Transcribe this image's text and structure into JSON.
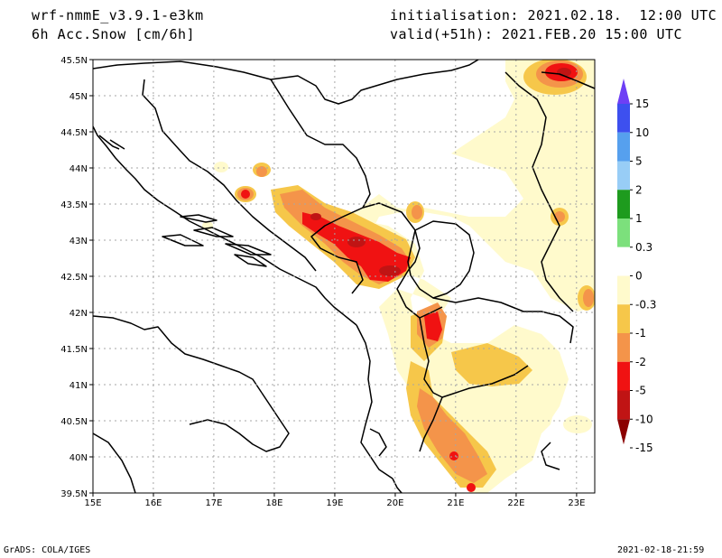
{
  "header": {
    "model": "wrf-nmmE_v3.9.1-e3km",
    "field": "6h Acc.Snow [cm/6h]",
    "init": "initialisation: 2021.02.18.  12:00 UTC",
    "valid": "valid(+51h): 2021.FEB.20 15:00 UTC"
  },
  "map": {
    "lon_range": [
      15.0,
      23.3
    ],
    "lat_range": [
      39.5,
      45.5
    ],
    "lon_ticks": [
      "15E",
      "16E",
      "17E",
      "18E",
      "19E",
      "20E",
      "21E",
      "22E",
      "23E"
    ],
    "lat_ticks": [
      "39.5N",
      "40N",
      "40.5N",
      "41N",
      "41.5N",
      "42N",
      "42.5N",
      "43N",
      "43.5N",
      "44N",
      "44.5N",
      "45N",
      "45.5N"
    ],
    "gridlines": true
  },
  "colorbar": {
    "labels": [
      "15",
      "10",
      "5",
      "2",
      "1",
      "0.3",
      "0",
      "-0.3",
      "-1",
      "-2",
      "-5",
      "-10",
      "-15"
    ],
    "colors": [
      "#6e3ff5",
      "#3d50ef",
      "#56a0ee",
      "#98cdf6",
      "#1e9b1e",
      "#7ce07c",
      "#ffffff",
      "#fffacc",
      "#f6c74a",
      "#f4944a",
      "#f01212",
      "#c01414",
      "#8b0000"
    ]
  },
  "footer": {
    "left": "GrADS: COLA/IGES",
    "right": "2021-02-18-21:59"
  }
}
